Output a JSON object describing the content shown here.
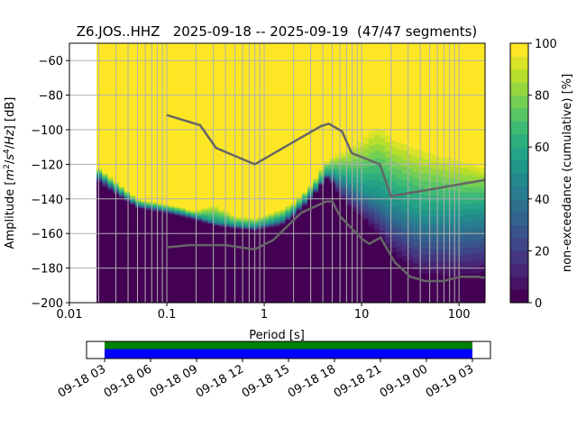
{
  "chart_data": {
    "type": "heatmap",
    "title": "Z6.JOS..HHZ   2025-09-18 -- 2025-09-19  (47/47 segments)",
    "xlabel": "Period [s]",
    "ylabel": {
      "prefix": "Amplitude [",
      "m": "m",
      "sup2": "2",
      "slash1": "/",
      "s": "s",
      "sup4": "4",
      "slash2": "/",
      "hz": "Hz",
      "suffix": "] [dB]"
    },
    "xscale": "log",
    "xlim": [
      0.01,
      185
    ],
    "ylim": [
      -200,
      -50
    ],
    "grid": true,
    "xticks": [
      {
        "v": 0.01,
        "label": "0.01"
      },
      {
        "v": 0.1,
        "label": "0.1"
      },
      {
        "v": 1,
        "label": "1"
      },
      {
        "v": 10,
        "label": "10"
      },
      {
        "v": 100,
        "label": "100"
      }
    ],
    "yticks": [
      {
        "v": -60,
        "label": "−60"
      },
      {
        "v": -80,
        "label": "−80"
      },
      {
        "v": -100,
        "label": "−100"
      },
      {
        "v": -120,
        "label": "−120"
      },
      {
        "v": -140,
        "label": "−140"
      },
      {
        "v": -160,
        "label": "−160"
      },
      {
        "v": -180,
        "label": "−180"
      },
      {
        "v": -200,
        "label": "−200"
      }
    ],
    "colorbar": {
      "label": "non-exceedance (cumulative) [%]",
      "range": [
        0,
        100
      ],
      "levels": 20,
      "colormap": "viridis",
      "ticks": [
        {
          "v": 0,
          "label": "0"
        },
        {
          "v": 20,
          "label": "20"
        },
        {
          "v": 40,
          "label": "40"
        },
        {
          "v": 60,
          "label": "60"
        },
        {
          "v": 80,
          "label": "80"
        },
        {
          "v": 100,
          "label": "100"
        }
      ]
    },
    "psd_percentiles": {
      "period": [
        0.019,
        0.02,
        0.03,
        0.05,
        0.1,
        0.2,
        0.3,
        0.5,
        0.8,
        1.5,
        2,
        3,
        4.5,
        7,
        10,
        15,
        20,
        40,
        100,
        185
      ],
      "p5": [
        -131,
        -130,
        -137,
        -145,
        -148,
        -152,
        -155,
        -157,
        -158,
        -155,
        -150,
        -140,
        -127,
        -143,
        -150,
        -160,
        -170,
        -183,
        -184,
        -182
      ],
      "p50": [
        -127,
        -126,
        -134,
        -143,
        -146,
        -150,
        -153,
        -155,
        -156,
        -152,
        -147,
        -137,
        -125,
        -130,
        -135,
        -138,
        -142,
        -150,
        -150,
        -148
      ],
      "p95": [
        -123,
        -122,
        -130,
        -140,
        -143,
        -147,
        -143,
        -150,
        -151,
        -146,
        -142,
        -132,
        -117,
        -112,
        -106,
        -98,
        -105,
        -112,
        -118,
        -122
      ]
    },
    "noise_models": [
      {
        "name": "high-noise-model",
        "color": "#666666",
        "period": [
          0.1,
          0.22,
          0.32,
          0.8,
          3.8,
          4.6,
          6.3,
          7.9,
          15.4,
          20,
          185
        ],
        "db": [
          -91.5,
          -97.4,
          -110.5,
          -120,
          -98,
          -96.5,
          -101,
          -113.5,
          -120,
          -138.5,
          -129
        ]
      },
      {
        "name": "low-noise-model",
        "color": "#666666",
        "period": [
          0.1,
          0.17,
          0.4,
          0.8,
          1.24,
          2.4,
          4.3,
          5,
          6,
          10,
          12,
          15.6,
          21.9,
          31.6,
          45,
          70,
          101,
          154,
          185
        ],
        "db": [
          -168,
          -166.7,
          -166.7,
          -169.2,
          -163.7,
          -148,
          -141.5,
          -141.5,
          -150,
          -163,
          -166,
          -162.3,
          -176.6,
          -185,
          -187.5,
          -187.5,
          -185,
          -185,
          -185.5
        ]
      }
    ],
    "timeline": {
      "ticks": [
        "09-18 03",
        "09-18 06",
        "09-18 09",
        "09-18 12",
        "09-18 15",
        "09-18 18",
        "09-18 21",
        "09-19 00",
        "09-19 03"
      ],
      "data_start_tick": 0,
      "data_end_tick": 8,
      "colors": {
        "top": "#008000",
        "bottom": "#0000ff"
      }
    }
  }
}
